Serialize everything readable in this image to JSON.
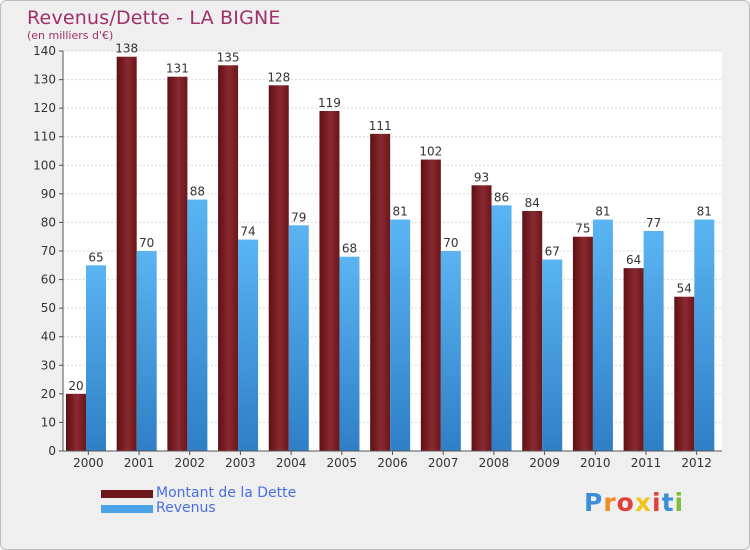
{
  "title": "Revenus/Dette - LA BIGNE",
  "subtitle": "(en milliers d'€)",
  "colors": {
    "dette": "#7a1f24",
    "revenus": "#4aa3e6",
    "title": "#a0306a",
    "legend_text": "#4a6fe0"
  },
  "legend": [
    {
      "label": "Montant de la Dette",
      "color": "#7a1f24"
    },
    {
      "label": "Revenus",
      "color": "#4aa3e6"
    }
  ],
  "logo": {
    "text": "Proxiti"
  },
  "chart_data": {
    "type": "bar",
    "title": "Revenus/Dette - LA BIGNE",
    "subtitle": "(en milliers d'€)",
    "categories": [
      "2000",
      "2001",
      "2002",
      "2003",
      "2004",
      "2005",
      "2006",
      "2007",
      "2008",
      "2009",
      "2010",
      "2011",
      "2012"
    ],
    "series": [
      {
        "name": "Montant de la Dette",
        "color": "#7a1f24",
        "values": [
          20,
          138,
          131,
          135,
          128,
          119,
          111,
          102,
          93,
          84,
          75,
          64,
          54
        ]
      },
      {
        "name": "Revenus",
        "color": "#4aa3e6",
        "values": [
          65,
          70,
          88,
          74,
          79,
          68,
          81,
          70,
          86,
          67,
          81,
          77,
          81
        ]
      }
    ],
    "ylim": [
      0,
      140
    ],
    "yticks": [
      0,
      10,
      20,
      30,
      40,
      50,
      60,
      70,
      80,
      90,
      100,
      110,
      120,
      130,
      140
    ],
    "grid": true,
    "legend_position": "bottom-left"
  }
}
